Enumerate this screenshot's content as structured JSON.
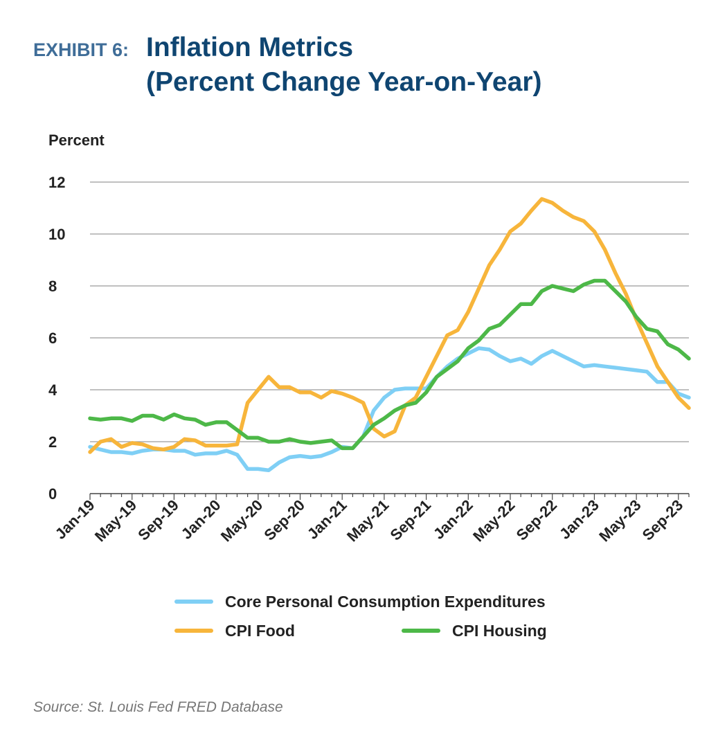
{
  "header": {
    "exhibit_label": "EXHIBIT 6:",
    "title_line1": "Inflation Metrics",
    "title_line2": "(Percent Change Year-on-Year)"
  },
  "source": "Source: St. Louis Fed FRED Database",
  "chart_data": {
    "type": "line",
    "title": "Inflation Metrics (Percent Change Year-on-Year)",
    "ylabel": "Percent",
    "xlabel": "",
    "ylim": [
      0,
      12
    ],
    "yticks": [
      0,
      2,
      4,
      6,
      8,
      10,
      12
    ],
    "grid": true,
    "x": [
      "Jan-19",
      "Feb-19",
      "Mar-19",
      "Apr-19",
      "May-19",
      "Jun-19",
      "Jul-19",
      "Aug-19",
      "Sep-19",
      "Oct-19",
      "Nov-19",
      "Dec-19",
      "Jan-20",
      "Feb-20",
      "Mar-20",
      "Apr-20",
      "May-20",
      "Jun-20",
      "Jul-20",
      "Aug-20",
      "Sep-20",
      "Oct-20",
      "Nov-20",
      "Dec-20",
      "Jan-21",
      "Feb-21",
      "Mar-21",
      "Apr-21",
      "May-21",
      "Jun-21",
      "Jul-21",
      "Aug-21",
      "Sep-21",
      "Oct-21",
      "Nov-21",
      "Dec-21",
      "Jan-22",
      "Feb-22",
      "Mar-22",
      "Apr-22",
      "May-22",
      "Jun-22",
      "Jul-22",
      "Aug-22",
      "Sep-22",
      "Oct-22",
      "Nov-22",
      "Dec-22",
      "Jan-23",
      "Feb-23",
      "Mar-23",
      "Apr-23",
      "May-23",
      "Jun-23",
      "Jul-23",
      "Aug-23",
      "Sep-23",
      "Oct-23"
    ],
    "xtick_labels": [
      "Jan-19",
      "May-19",
      "Sep-19",
      "Jan-20",
      "May-20",
      "Sep-20",
      "Jan-21",
      "May-21",
      "Sep-21",
      "Jan-22",
      "May-22",
      "Sep-22",
      "Jan-23",
      "May-23",
      "Sep-23"
    ],
    "series": [
      {
        "name": "Core Personal Consumption Expenditures",
        "color": "#7fcff5",
        "values": [
          1.8,
          1.7,
          1.6,
          1.6,
          1.55,
          1.65,
          1.7,
          1.7,
          1.65,
          1.65,
          1.5,
          1.55,
          1.55,
          1.65,
          1.5,
          0.95,
          0.95,
          0.9,
          1.2,
          1.4,
          1.45,
          1.4,
          1.45,
          1.6,
          1.8,
          1.75,
          2.2,
          3.2,
          3.7,
          4.0,
          4.05,
          4.05,
          4.05,
          4.5,
          4.9,
          5.2,
          5.4,
          5.6,
          5.55,
          5.3,
          5.1,
          5.2,
          5.0,
          5.3,
          5.5,
          5.3,
          5.1,
          4.9,
          4.95,
          4.9,
          4.85,
          4.8,
          4.75,
          4.7,
          4.3,
          4.3,
          3.85,
          3.7
        ]
      },
      {
        "name": "CPI Food",
        "color": "#f7b53b",
        "values": [
          1.6,
          2.0,
          2.1,
          1.8,
          1.95,
          1.9,
          1.75,
          1.7,
          1.8,
          2.1,
          2.05,
          1.85,
          1.85,
          1.85,
          1.9,
          3.5,
          4.0,
          4.5,
          4.1,
          4.1,
          3.9,
          3.9,
          3.7,
          3.95,
          3.85,
          3.7,
          3.5,
          2.5,
          2.2,
          2.4,
          3.4,
          3.7,
          4.5,
          5.3,
          6.1,
          6.3,
          7.0,
          7.9,
          8.8,
          9.4,
          10.1,
          10.4,
          10.9,
          11.35,
          11.2,
          10.9,
          10.65,
          10.5,
          10.1,
          9.4,
          8.5,
          7.7,
          6.7,
          5.8,
          4.9,
          4.3,
          3.7,
          3.3
        ]
      },
      {
        "name": "CPI Housing",
        "color": "#4db848",
        "values": [
          2.9,
          2.85,
          2.9,
          2.9,
          2.8,
          3.0,
          3.0,
          2.85,
          3.05,
          2.9,
          2.85,
          2.65,
          2.75,
          2.75,
          2.45,
          2.15,
          2.15,
          2.0,
          2.0,
          2.1,
          2.0,
          1.95,
          2.0,
          2.05,
          1.75,
          1.75,
          2.2,
          2.65,
          2.9,
          3.2,
          3.4,
          3.5,
          3.9,
          4.5,
          4.8,
          5.1,
          5.6,
          5.9,
          6.35,
          6.5,
          6.9,
          7.3,
          7.3,
          7.8,
          8.0,
          7.9,
          7.8,
          8.05,
          8.2,
          8.2,
          7.8,
          7.4,
          6.8,
          6.35,
          6.25,
          5.75,
          5.55,
          5.2
        ]
      }
    ],
    "legend": "bottom",
    "legend_entries": [
      "Core Personal Consumption Expenditures",
      "CPI Food",
      "CPI Housing"
    ]
  }
}
